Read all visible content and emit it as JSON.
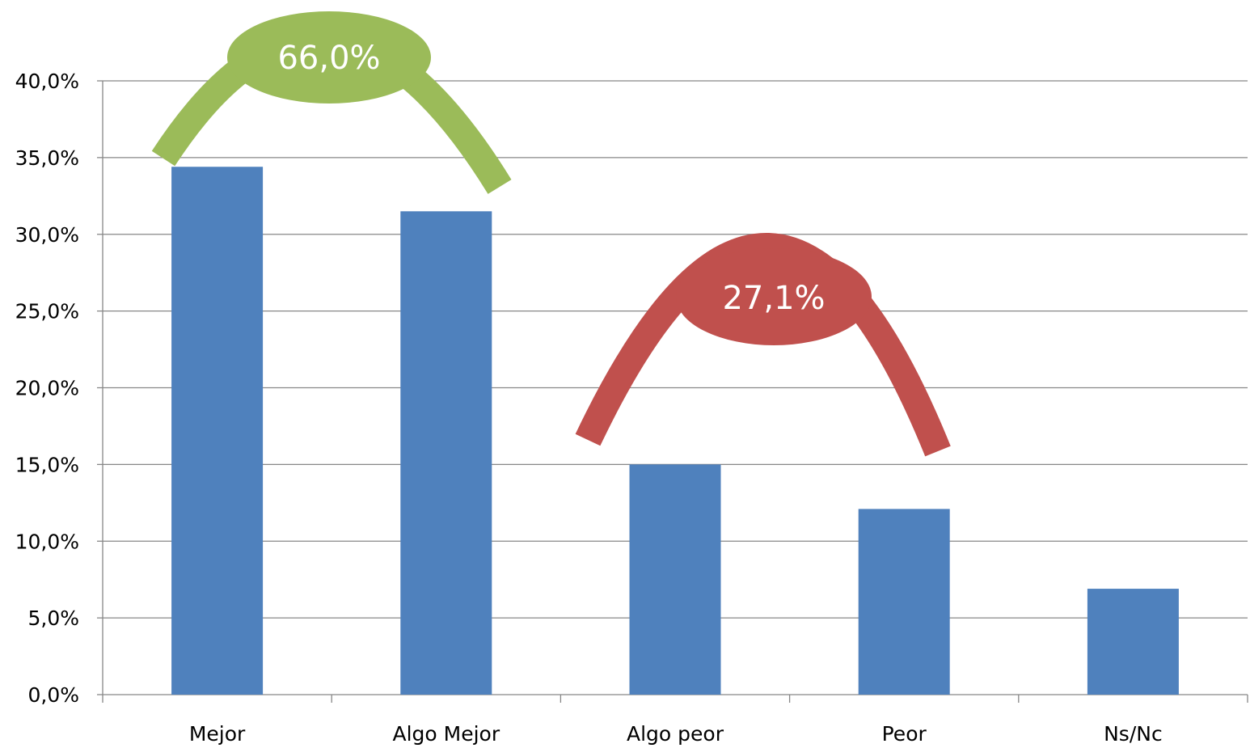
{
  "chart_data": {
    "type": "bar",
    "categories": [
      "Mejor",
      "Algo Mejor",
      "Algo peor",
      "Peor",
      "Ns/Nc"
    ],
    "values": [
      34.4,
      31.5,
      15.0,
      12.1,
      6.9
    ],
    "ylim": [
      0,
      40
    ],
    "yticks": [
      0,
      5,
      10,
      15,
      20,
      25,
      30,
      35,
      40
    ],
    "ytick_labels": [
      "0,0%",
      "5,0%",
      "10,0%",
      "15,0%",
      "20,0%",
      "25,0%",
      "30,0%",
      "35,0%",
      "40,0%"
    ],
    "grid": true,
    "bar_color": "#4F81BD",
    "annotations": [
      {
        "text": "66,0%",
        "spans": [
          "Mejor",
          "Algo Mejor"
        ],
        "color": "#9BBB59"
      },
      {
        "text": "27,1%",
        "spans": [
          "Algo peor",
          "Peor"
        ],
        "color": "#C0504D"
      }
    ]
  }
}
